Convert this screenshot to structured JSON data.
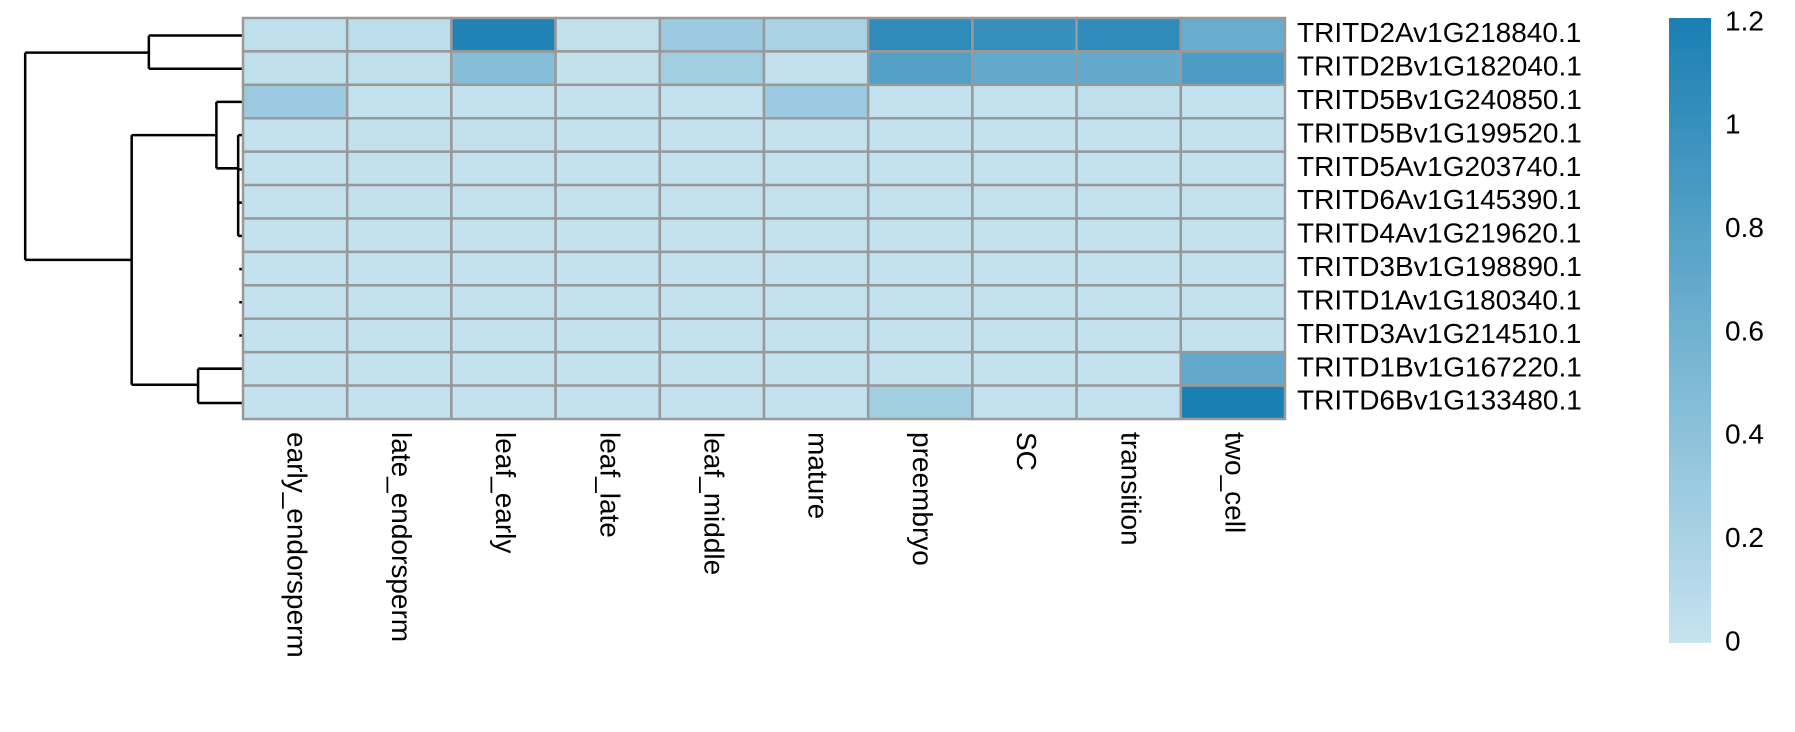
{
  "chart_data": {
    "type": "heatmap",
    "rows": [
      "TRITD2Av1G218840.1",
      "TRITD2Bv1G182040.1",
      "TRITD5Bv1G240850.1",
      "TRITD5Bv1G199520.1",
      "TRITD5Av1G203740.1",
      "TRITD6Av1G145390.1",
      "TRITD4Av1G219620.1",
      "TRITD3Bv1G198890.1",
      "TRITD1Av1G180340.1",
      "TRITD3Av1G214510.1",
      "TRITD1Bv1G167220.1",
      "TRITD6Bv1G133480.1"
    ],
    "columns": [
      "early_endorsperm",
      "late_endorsperm",
      "leaf_early",
      "leaf_late",
      "leaf_middle",
      "mature",
      "preembryo",
      "SC",
      "transition",
      "two_cell"
    ],
    "values": [
      [
        0.05,
        0.07,
        1.15,
        0.03,
        0.3,
        0.2,
        1.05,
        1.0,
        1.05,
        0.65
      ],
      [
        0.05,
        0.05,
        0.45,
        0.03,
        0.25,
        0.03,
        0.8,
        0.7,
        0.7,
        0.85
      ],
      [
        0.3,
        0.02,
        0.02,
        0.02,
        0.02,
        0.3,
        0.02,
        0.02,
        0.05,
        0.02
      ],
      [
        0.02,
        0.03,
        0.03,
        0.02,
        0.02,
        0.02,
        0.02,
        0.02,
        0.02,
        0.02
      ],
      [
        0.02,
        0.03,
        0.02,
        0.02,
        0.02,
        0.02,
        0.02,
        0.02,
        0.02,
        0.02
      ],
      [
        0.02,
        0.03,
        0.02,
        0.02,
        0.02,
        0.02,
        0.02,
        0.02,
        0.02,
        0.02
      ],
      [
        0.02,
        0.02,
        0.02,
        0.02,
        0.02,
        0.02,
        0.02,
        0.02,
        0.02,
        0.02
      ],
      [
        0.02,
        0.02,
        0.02,
        0.02,
        0.02,
        0.02,
        0.02,
        0.02,
        0.02,
        0.02
      ],
      [
        0.02,
        0.02,
        0.02,
        0.02,
        0.02,
        0.02,
        0.02,
        0.02,
        0.02,
        0.02
      ],
      [
        0.02,
        0.02,
        0.02,
        0.02,
        0.02,
        0.02,
        0.02,
        0.02,
        0.02,
        0.02
      ],
      [
        0.02,
        0.02,
        0.02,
        0.02,
        0.02,
        0.02,
        0.02,
        0.02,
        0.02,
        0.7
      ],
      [
        0.02,
        0.02,
        0.02,
        0.02,
        0.02,
        0.02,
        0.25,
        0.02,
        0.02,
        1.2
      ]
    ],
    "colormap": [
      "#c6e3ef",
      "#1a7fb2"
    ],
    "zlim": [
      0,
      1.2
    ],
    "zticks": [
      0,
      0.2,
      0.4,
      0.6,
      0.8,
      1,
      1.2
    ]
  }
}
